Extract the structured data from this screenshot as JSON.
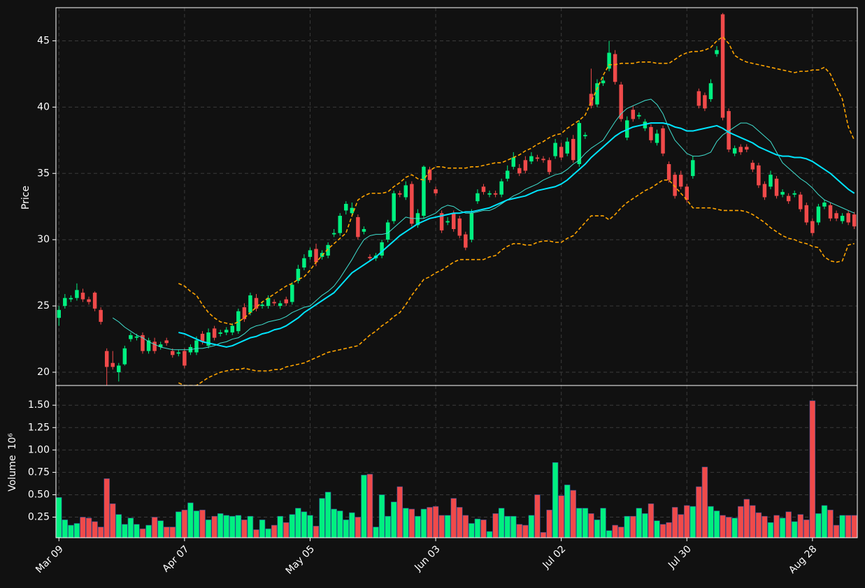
{
  "chart_data": {
    "type": "candlestick",
    "ylabel": "Price",
    "ylim": [
      19,
      47.5
    ],
    "yticks": [
      20,
      25,
      30,
      35,
      40,
      45
    ],
    "grid": true,
    "up_color": "#00f080",
    "down_color": "#f04a4a",
    "categories": [
      "Mar 09",
      null,
      null,
      null,
      null,
      null,
      null,
      null,
      null,
      null,
      null,
      null,
      null,
      null,
      null,
      null,
      null,
      null,
      null,
      null,
      null,
      "Apr 07",
      null,
      null,
      null,
      null,
      null,
      null,
      null,
      null,
      null,
      null,
      null,
      null,
      null,
      null,
      null,
      null,
      null,
      null,
      null,
      null,
      "May 05",
      null,
      null,
      null,
      null,
      null,
      null,
      null,
      null,
      null,
      null,
      null,
      null,
      null,
      null,
      null,
      null,
      null,
      null,
      null,
      null,
      "Jun 03",
      null,
      null,
      null,
      null,
      null,
      null,
      null,
      null,
      null,
      null,
      null,
      null,
      null,
      null,
      null,
      null,
      null,
      null,
      null,
      null,
      "Jul 02",
      null,
      null,
      null,
      null,
      null,
      null,
      null,
      null,
      null,
      null,
      null,
      null,
      null,
      null,
      null,
      null,
      null,
      null,
      null,
      null,
      "Jul 30",
      null,
      null,
      null,
      null,
      null,
      null,
      null,
      null,
      null,
      null,
      null,
      null,
      null,
      null,
      null,
      null,
      null,
      null,
      null,
      null,
      "Aug 28",
      null,
      null,
      null,
      null,
      null,
      null,
      null
    ],
    "open": [
      24.1,
      25.0,
      25.5,
      25.6,
      26.0,
      25.5,
      26.0,
      24.7,
      21.6,
      20.7,
      20.0,
      20.6,
      22.5,
      22.6,
      22.8,
      21.6,
      22.3,
      21.9,
      22.4,
      21.6,
      21.4,
      21.6,
      21.5,
      21.5,
      22.9,
      22.0,
      23.3,
      22.9,
      23.0,
      23.0,
      23.1,
      24.9,
      24.5,
      25.6,
      25.0,
      25.0,
      25.3,
      25.0,
      25.5,
      25.3,
      26.9,
      27.9,
      28.7,
      29.3,
      28.7,
      28.8,
      30.4,
      30.5,
      32.2,
      32.0,
      31.7,
      30.6,
      28.7,
      28.6,
      28.8,
      30.0,
      31.4,
      33.5,
      33.2,
      34.2,
      31.1,
      31.8,
      35.3,
      33.8,
      32.0,
      31.3,
      32.0,
      31.6,
      30.4,
      30.0,
      32.9,
      34.0,
      33.4,
      33.5,
      33.4,
      34.6,
      35.5,
      35.4,
      36.0,
      35.9,
      36.2,
      36.1,
      36.0,
      36.3,
      37.0,
      36.5,
      37.6,
      35.7,
      37.8,
      41.0,
      40.2,
      41.8,
      42.9,
      44.0,
      41.7,
      37.7,
      39.8,
      39.3,
      38.4,
      38.5,
      37.3,
      38.4,
      35.7,
      34.9,
      34.9,
      34.0,
      34.8,
      41.2,
      40.9,
      40.6,
      44.0,
      47.0,
      39.7,
      36.5,
      37.0,
      37.0,
      35.8,
      35.6,
      34.2,
      34.0,
      34.6,
      33.4,
      33.3,
      33.4,
      33.4,
      32.6,
      31.4,
      31.3,
      32.5,
      32.6,
      32.0,
      31.4,
      32.0,
      31.9
    ],
    "high": [
      25.0,
      25.9,
      25.8,
      26.7,
      26.3,
      25.7,
      26.1,
      24.9,
      21.8,
      21.6,
      20.7,
      22.0,
      23.0,
      22.9,
      23.0,
      22.6,
      22.6,
      22.3,
      22.6,
      21.8,
      21.7,
      21.8,
      22.1,
      22.7,
      23.1,
      23.3,
      23.5,
      23.2,
      23.4,
      23.7,
      24.8,
      25.2,
      26.0,
      25.9,
      25.3,
      25.8,
      25.5,
      25.4,
      25.7,
      26.8,
      28.1,
      28.9,
      29.4,
      29.7,
      29.2,
      29.8,
      30.8,
      32.0,
      32.9,
      32.8,
      31.9,
      31.0,
      28.9,
      29.0,
      30.0,
      31.5,
      33.7,
      33.7,
      34.4,
      34.4,
      32.3,
      35.6,
      35.5,
      34.0,
      32.2,
      31.7,
      32.2,
      31.8,
      30.6,
      32.3,
      33.8,
      34.2,
      33.7,
      33.7,
      34.6,
      35.6,
      36.6,
      35.7,
      36.3,
      36.6,
      36.4,
      36.3,
      36.2,
      37.6,
      37.3,
      37.7,
      37.9,
      39.0,
      38.1,
      42.9,
      42.1,
      42.3,
      45.0,
      44.3,
      41.9,
      39.3,
      40.1,
      39.6,
      39.1,
      38.7,
      38.3,
      38.6,
      35.9,
      35.1,
      35.2,
      34.2,
      36.3,
      41.4,
      41.1,
      42.1,
      44.6,
      47.1,
      39.9,
      37.1,
      37.2,
      37.2,
      36.0,
      35.8,
      34.4,
      35.2,
      34.8,
      33.8,
      33.5,
      33.7,
      33.6,
      32.8,
      31.6,
      32.7,
      33.0,
      32.8,
      32.2,
      32.0,
      32.2,
      32.1
    ],
    "low": [
      23.5,
      24.8,
      25.3,
      25.4,
      25.3,
      25.1,
      24.6,
      23.6,
      19.0,
      20.2,
      19.3,
      20.5,
      22.3,
      22.4,
      21.4,
      21.4,
      21.4,
      21.7,
      22.0,
      21.1,
      21.2,
      20.3,
      21.3,
      21.3,
      22.1,
      21.8,
      22.4,
      22.7,
      22.8,
      22.8,
      22.9,
      23.8,
      24.3,
      24.6,
      24.8,
      24.8,
      25.0,
      24.8,
      25.0,
      25.1,
      26.7,
      27.7,
      28.5,
      28.0,
      28.5,
      28.6,
      30.2,
      30.3,
      31.9,
      31.8,
      30.0,
      30.4,
      28.4,
      28.4,
      28.6,
      29.8,
      31.2,
      33.2,
      33.0,
      31.0,
      30.9,
      31.6,
      34.3,
      33.3,
      30.5,
      31.1,
      30.6,
      30.1,
      29.2,
      29.8,
      32.7,
      33.4,
      33.2,
      33.2,
      33.2,
      34.4,
      35.3,
      34.8,
      35.0,
      35.7,
      35.9,
      35.8,
      34.9,
      36.1,
      36.0,
      36.3,
      35.8,
      35.5,
      37.6,
      39.9,
      40.0,
      41.6,
      42.7,
      41.7,
      38.9,
      37.5,
      38.9,
      39.1,
      38.2,
      37.3,
      37.1,
      36.3,
      34.3,
      33.1,
      33.8,
      32.8,
      34.6,
      39.9,
      39.7,
      40.4,
      43.8,
      39.0,
      36.6,
      36.3,
      36.4,
      36.6,
      35.1,
      33.9,
      33.0,
      33.8,
      33.1,
      33.2,
      32.7,
      33.2,
      32.1,
      31.1,
      30.3,
      31.1,
      32.3,
      31.4,
      31.4,
      31.2,
      31.1,
      30.8
    ],
    "close": [
      24.7,
      25.6,
      25.6,
      26.2,
      25.5,
      25.3,
      24.8,
      23.8,
      20.4,
      20.4,
      20.5,
      21.8,
      22.8,
      22.7,
      21.6,
      22.4,
      21.6,
      22.1,
      22.2,
      21.3,
      21.5,
      20.5,
      21.9,
      22.4,
      22.3,
      23.0,
      22.6,
      23.0,
      23.2,
      23.5,
      24.6,
      24.0,
      25.8,
      24.8,
      25.1,
      25.6,
      25.2,
      25.2,
      25.2,
      26.6,
      27.8,
      28.6,
      29.2,
      28.3,
      29.0,
      29.6,
      30.5,
      31.8,
      32.7,
      32.4,
      30.2,
      30.8,
      28.6,
      28.8,
      29.8,
      31.3,
      33.5,
      33.4,
      34.1,
      31.2,
      32.0,
      35.5,
      34.5,
      33.5,
      30.7,
      31.4,
      30.8,
      30.3,
      29.4,
      32.0,
      33.5,
      33.6,
      33.5,
      33.4,
      34.4,
      35.2,
      36.2,
      35.0,
      35.2,
      36.3,
      36.1,
      36.0,
      35.1,
      37.3,
      36.2,
      37.4,
      36.0,
      38.8,
      37.9,
      40.1,
      41.8,
      42.0,
      44.1,
      41.9,
      39.1,
      39.0,
      39.1,
      39.4,
      38.9,
      37.5,
      38.0,
      36.5,
      34.5,
      33.3,
      34.0,
      33.0,
      36.0,
      40.1,
      39.9,
      41.8,
      44.3,
      39.2,
      36.8,
      36.9,
      36.6,
      36.8,
      35.3,
      34.1,
      33.2,
      34.9,
      33.3,
      33.6,
      32.9,
      33.5,
      32.3,
      31.3,
      30.5,
      32.5,
      32.8,
      31.6,
      31.6,
      31.8,
      31.3,
      31.0
    ],
    "series": [
      {
        "color": "#40e0d0",
        "values": [
          null,
          null,
          null,
          null,
          null,
          null,
          null,
          null,
          null,
          24.1,
          23.8,
          23.4,
          23.1,
          22.8,
          22.6,
          22.3,
          22.1,
          21.9,
          21.8,
          21.7,
          21.7,
          21.7,
          21.7,
          21.8,
          21.8,
          21.9,
          22.0,
          22.2,
          22.3,
          22.5,
          22.6,
          22.9,
          23.3,
          23.5,
          23.6,
          23.8,
          23.9,
          24.0,
          24.2,
          24.5,
          24.7,
          24.9,
          25.0,
          25.4,
          25.8,
          26.1,
          26.5,
          27.1,
          27.8,
          28.5,
          29.3,
          30.0,
          30.3,
          30.4,
          30.4,
          30.5,
          30.9,
          31.3,
          31.7,
          31.6,
          31.6,
          31.6,
          31.8,
          32.0,
          32.4,
          32.6,
          32.5,
          32.2,
          32.0,
          32.0,
          32.1,
          32.2,
          32.2,
          32.4,
          32.7,
          33.0,
          33.3,
          33.5,
          33.8,
          34.0,
          34.2,
          34.5,
          34.7,
          34.9,
          35.0,
          35.3,
          35.7,
          36.0,
          36.5,
          36.9,
          37.2,
          37.5,
          38.2,
          38.9,
          39.5,
          39.9,
          40.1,
          40.3,
          40.5,
          40.6,
          40.2,
          39.5,
          38.4,
          37.5,
          37.0,
          36.5,
          36.3,
          36.3,
          36.4,
          36.6,
          37.4,
          37.9,
          38.2,
          38.5,
          38.8,
          38.8,
          38.6,
          38.2,
          37.8,
          37.4,
          36.6,
          35.8,
          35.4,
          35.0,
          34.6,
          34.3,
          33.9,
          33.4,
          33.0,
          32.8,
          32.6,
          32.4,
          32.2,
          32.0
        ]
      },
      {
        "color": "#00e5ff",
        "values": [
          null,
          null,
          null,
          null,
          null,
          null,
          null,
          null,
          null,
          null,
          null,
          null,
          null,
          null,
          null,
          null,
          null,
          null,
          null,
          null,
          23.0,
          22.9,
          22.7,
          22.5,
          22.3,
          22.2,
          22.1,
          22.0,
          21.9,
          22.0,
          22.2,
          22.4,
          22.6,
          22.7,
          22.9,
          23.0,
          23.2,
          23.3,
          23.5,
          23.8,
          24.1,
          24.5,
          24.8,
          25.1,
          25.4,
          25.7,
          26.0,
          26.5,
          27.0,
          27.5,
          27.8,
          28.1,
          28.4,
          28.7,
          29.1,
          29.5,
          29.9,
          30.3,
          30.6,
          30.9,
          31.2,
          31.4,
          31.6,
          31.7,
          31.8,
          31.9,
          32.0,
          32.0,
          32.1,
          32.1,
          32.2,
          32.3,
          32.4,
          32.6,
          32.8,
          33.0,
          33.1,
          33.2,
          33.3,
          33.5,
          33.7,
          33.8,
          33.9,
          34.0,
          34.2,
          34.5,
          34.9,
          35.3,
          35.7,
          36.2,
          36.6,
          37.0,
          37.4,
          37.8,
          38.1,
          38.3,
          38.5,
          38.6,
          38.7,
          38.8,
          38.8,
          38.8,
          38.7,
          38.5,
          38.4,
          38.2,
          38.2,
          38.3,
          38.4,
          38.5,
          38.6,
          38.4,
          38.1,
          37.9,
          37.7,
          37.5,
          37.3,
          37.0,
          36.8,
          36.6,
          36.4,
          36.3,
          36.3,
          36.2,
          36.2,
          36.1,
          35.9,
          35.6,
          35.3,
          35.0,
          34.6,
          34.2,
          33.8,
          33.5
        ]
      },
      {
        "color": "#ffa500",
        "dashed": true,
        "values": [
          null,
          null,
          null,
          null,
          null,
          null,
          null,
          null,
          null,
          null,
          null,
          null,
          null,
          null,
          null,
          null,
          null,
          null,
          null,
          null,
          26.7,
          26.5,
          26.1,
          25.8,
          25.1,
          24.5,
          24.1,
          23.8,
          23.7,
          23.6,
          23.8,
          24.1,
          24.5,
          24.9,
          25.3,
          25.6,
          25.9,
          26.2,
          26.5,
          26.7,
          27.0,
          27.2,
          27.7,
          28.3,
          28.8,
          29.3,
          29.7,
          30.1,
          30.5,
          31.8,
          33.0,
          33.3,
          33.5,
          33.5,
          33.5,
          33.6,
          34.0,
          34.3,
          34.7,
          34.9,
          34.6,
          34.5,
          35.2,
          35.5,
          35.5,
          35.4,
          35.4,
          35.4,
          35.4,
          35.5,
          35.5,
          35.6,
          35.7,
          35.8,
          35.8,
          36.0,
          36.2,
          36.4,
          36.7,
          36.9,
          37.2,
          37.4,
          37.7,
          37.9,
          38.0,
          38.4,
          38.7,
          39.0,
          39.4,
          40.4,
          41.4,
          42.4,
          43.2,
          43.2,
          43.3,
          43.3,
          43.3,
          43.4,
          43.4,
          43.4,
          43.3,
          43.3,
          43.3,
          43.6,
          43.9,
          44.1,
          44.2,
          44.2,
          44.3,
          44.5,
          45.0,
          45.3,
          44.8,
          43.9,
          43.6,
          43.4,
          43.3,
          43.2,
          43.1,
          43.0,
          42.9,
          42.8,
          42.7,
          42.6,
          42.7,
          42.7,
          42.8,
          42.8,
          43.0,
          42.5,
          41.5,
          40.6,
          38.5,
          37.5
        ]
      },
      {
        "color": "#ffa500",
        "dashed": true,
        "values": [
          null,
          null,
          null,
          null,
          null,
          null,
          null,
          null,
          null,
          null,
          null,
          null,
          null,
          null,
          null,
          null,
          null,
          null,
          null,
          null,
          19.2,
          19.0,
          19.0,
          19.0,
          19.3,
          19.6,
          19.8,
          20.0,
          20.1,
          20.2,
          20.2,
          20.3,
          20.2,
          20.1,
          20.1,
          20.1,
          20.2,
          20.2,
          20.4,
          20.5,
          20.6,
          20.7,
          20.9,
          21.1,
          21.3,
          21.5,
          21.6,
          21.7,
          21.8,
          21.9,
          22.0,
          22.4,
          22.8,
          23.1,
          23.5,
          23.8,
          24.2,
          24.5,
          25.1,
          25.8,
          26.4,
          27.0,
          27.2,
          27.5,
          27.7,
          28.0,
          28.3,
          28.5,
          28.5,
          28.5,
          28.5,
          28.5,
          28.7,
          28.8,
          29.2,
          29.5,
          29.7,
          29.7,
          29.6,
          29.6,
          29.8,
          29.9,
          29.9,
          29.8,
          29.8,
          30.1,
          30.3,
          30.8,
          31.3,
          31.8,
          31.8,
          31.8,
          31.5,
          31.9,
          32.4,
          32.8,
          33.1,
          33.4,
          33.7,
          33.9,
          34.2,
          34.5,
          34.5,
          34.0,
          33.5,
          33.0,
          32.4,
          32.4,
          32.4,
          32.4,
          32.3,
          32.2,
          32.2,
          32.2,
          32.2,
          32.1,
          31.9,
          31.6,
          31.3,
          30.9,
          30.6,
          30.3,
          30.1,
          30.0,
          29.8,
          29.7,
          29.5,
          29.4,
          28.7,
          28.4,
          28.3,
          28.4,
          29.6,
          29.7
        ]
      }
    ],
    "volume": {
      "ylabel": "Volume",
      "offset_label": "10⁶",
      "ylim": [
        0.02,
        1.72
      ],
      "yticks": [
        0.25,
        {
          "value": 0.5,
          "label": "0.50"
        },
        0.75,
        {
          "value": 1.0,
          "label": "1.00"
        },
        1.25,
        {
          "value": 1.5,
          "label": "1.50"
        }
      ],
      "values": [
        0.47,
        0.22,
        0.16,
        0.18,
        0.25,
        0.24,
        0.2,
        0.14,
        0.68,
        0.4,
        0.28,
        0.17,
        0.24,
        0.17,
        0.12,
        0.16,
        0.25,
        0.21,
        0.14,
        0.14,
        0.31,
        0.33,
        0.41,
        0.32,
        0.33,
        0.22,
        0.26,
        0.29,
        0.27,
        0.26,
        0.27,
        0.22,
        0.26,
        0.11,
        0.22,
        0.12,
        0.16,
        0.26,
        0.19,
        0.28,
        0.35,
        0.31,
        0.27,
        0.15,
        0.46,
        0.53,
        0.34,
        0.32,
        0.22,
        0.3,
        0.25,
        0.72,
        0.73,
        0.14,
        0.5,
        0.26,
        0.42,
        0.59,
        0.35,
        0.34,
        0.26,
        0.34,
        0.36,
        0.37,
        0.27,
        0.27,
        0.46,
        0.36,
        0.27,
        0.18,
        0.23,
        0.22,
        0.09,
        0.29,
        0.35,
        0.26,
        0.26,
        0.17,
        0.16,
        0.27,
        0.5,
        0.08,
        0.33,
        0.86,
        0.49,
        0.61,
        0.55,
        0.35,
        0.35,
        0.29,
        0.22,
        0.35,
        0.1,
        0.16,
        0.14,
        0.26,
        0.26,
        0.35,
        0.29,
        0.4,
        0.21,
        0.17,
        0.19,
        0.36,
        0.28,
        0.38,
        0.37,
        0.59,
        0.81,
        0.37,
        0.32,
        0.27,
        0.25,
        0.24,
        0.37,
        0.45,
        0.38,
        0.3,
        0.26,
        0.19,
        0.27,
        0.24,
        0.31,
        0.2,
        0.28,
        0.22,
        1.55,
        0.29,
        0.38,
        0.33,
        0.16,
        0.27,
        0.27,
        0.27
      ]
    }
  }
}
